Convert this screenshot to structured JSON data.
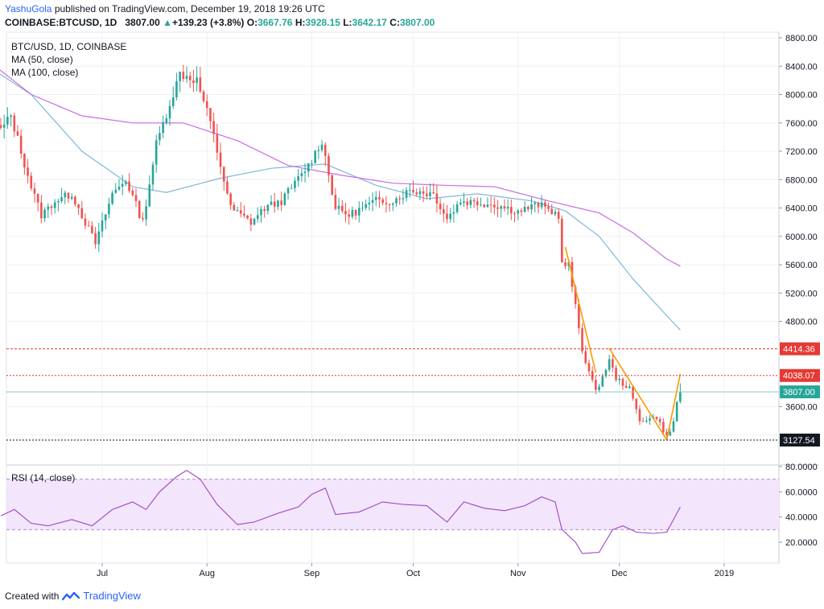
{
  "header": {
    "author": "YashuGola",
    "published_text": " published on TradingView.com, December 19, 2018 19:26 UTC",
    "symbol": "COINBASE:BTCUSD, 1D",
    "price": "3807.00",
    "change_arrow": "▲",
    "change": "+139.23 (+3.8%)",
    "open_label": "O:",
    "open": "3667.76",
    "high_label": "H:",
    "high": "3928.15",
    "low_label": "L:",
    "low": "3642.17",
    "close_label": "C:",
    "close": "3807.00"
  },
  "footer": {
    "created_with": "Created with",
    "brand": "TradingView"
  },
  "colors": {
    "up": "#26a69a",
    "down": "#ef5350",
    "ma50": "#7fb8d8",
    "ma100": "#c86ce4",
    "trend": "#ff9800",
    "rsi": "#9c44c8",
    "rsi_band": "#f3e5fb",
    "level_red": "#e53935",
    "grid": "#eef0f4"
  },
  "chart_data": {
    "type": "candlestick",
    "title": "BTC/USD, 1D, COINBASE",
    "legend": [
      "MA (50, close)",
      "MA (100, close)"
    ],
    "x_ticks": [
      "Jul",
      "Aug",
      "Sep",
      "Oct",
      "Nov",
      "Dec",
      "2019"
    ],
    "y_ticks": [
      "8800.00",
      "8400.00",
      "8000.00",
      "7600.00",
      "7200.00",
      "6800.00",
      "6400.00",
      "6000.00",
      "5600.00",
      "5200.00",
      "4800.00",
      "3600.00"
    ],
    "ylim": [
      3050,
      8800
    ],
    "last_price": 3807.0,
    "price_labels": {
      "high_line": "4414.36",
      "mid_line": "4038.07",
      "last": "3807.00",
      "low_line": "3127.54"
    },
    "hlines": [
      4414.36,
      4038.07,
      3127.54
    ],
    "pivots": [
      [
        "2018-06-01",
        7500
      ],
      [
        "2018-06-04",
        7700
      ],
      [
        "2018-06-10",
        6700
      ],
      [
        "2018-06-13",
        6300
      ],
      [
        "2018-06-17",
        6500
      ],
      [
        "2018-06-22",
        6600
      ],
      [
        "2018-06-29",
        5900
      ],
      [
        "2018-07-04",
        6600
      ],
      [
        "2018-07-08",
        6800
      ],
      [
        "2018-07-13",
        6200
      ],
      [
        "2018-07-17",
        7300
      ],
      [
        "2018-07-24",
        8300
      ],
      [
        "2018-07-29",
        8200
      ],
      [
        "2018-08-02",
        7600
      ],
      [
        "2018-08-08",
        6400
      ],
      [
        "2018-08-14",
        6200
      ],
      [
        "2018-08-18",
        6400
      ],
      [
        "2018-08-23",
        6500
      ],
      [
        "2018-08-31",
        7000
      ],
      [
        "2018-09-04",
        7350
      ],
      [
        "2018-09-08",
        6400
      ],
      [
        "2018-09-12",
        6300
      ],
      [
        "2018-09-20",
        6500
      ],
      [
        "2018-09-25",
        6500
      ],
      [
        "2018-09-30",
        6650
      ],
      [
        "2018-10-07",
        6600
      ],
      [
        "2018-10-11",
        6250
      ],
      [
        "2018-10-15",
        6500
      ],
      [
        "2018-10-25",
        6450
      ],
      [
        "2018-11-01",
        6350
      ],
      [
        "2018-11-07",
        6450
      ],
      [
        "2018-11-13",
        6300
      ],
      [
        "2018-11-14",
        5600
      ],
      [
        "2018-11-16",
        5600
      ],
      [
        "2018-11-20",
        4400
      ],
      [
        "2018-11-24",
        3800
      ],
      [
        "2018-11-28",
        4250
      ],
      [
        "2018-11-30",
        4000
      ],
      [
        "2018-12-04",
        3850
      ],
      [
        "2018-12-07",
        3400
      ],
      [
        "2018-12-12",
        3450
      ],
      [
        "2018-12-15",
        3180
      ],
      [
        "2018-12-16",
        3230
      ],
      [
        "2018-12-17",
        3400
      ],
      [
        "2018-12-18",
        3660
      ],
      [
        "2018-12-19",
        3807
      ]
    ],
    "ma50": [
      [
        "2018-05-25",
        8500
      ],
      [
        "2018-06-10",
        8000
      ],
      [
        "2018-06-25",
        7200
      ],
      [
        "2018-07-10",
        6700
      ],
      [
        "2018-07-20",
        6620
      ],
      [
        "2018-08-05",
        6820
      ],
      [
        "2018-08-20",
        6960
      ],
      [
        "2018-09-05",
        7020
      ],
      [
        "2018-09-20",
        6720
      ],
      [
        "2018-10-05",
        6530
      ],
      [
        "2018-10-20",
        6600
      ],
      [
        "2018-11-05",
        6500
      ],
      [
        "2018-11-15",
        6360
      ],
      [
        "2018-11-25",
        6000
      ],
      [
        "2018-12-05",
        5400
      ],
      [
        "2018-12-15",
        4880
      ],
      [
        "2018-12-19",
        4680
      ]
    ],
    "ma100": [
      [
        "2018-05-25",
        8600
      ],
      [
        "2018-06-10",
        8000
      ],
      [
        "2018-06-25",
        7700
      ],
      [
        "2018-07-10",
        7600
      ],
      [
        "2018-07-25",
        7600
      ],
      [
        "2018-08-10",
        7350
      ],
      [
        "2018-08-25",
        7000
      ],
      [
        "2018-09-10",
        6860
      ],
      [
        "2018-09-25",
        6750
      ],
      [
        "2018-10-10",
        6720
      ],
      [
        "2018-10-25",
        6700
      ],
      [
        "2018-11-10",
        6500
      ],
      [
        "2018-11-25",
        6330
      ],
      [
        "2018-12-05",
        6050
      ],
      [
        "2018-12-15",
        5680
      ],
      [
        "2018-12-19",
        5580
      ]
    ],
    "trendlines": [
      [
        [
          "2018-11-15",
          5850
        ],
        [
          "2018-11-24",
          4080
        ]
      ],
      [
        [
          "2018-11-28",
          4420
        ],
        [
          "2018-12-15",
          3130
        ]
      ],
      [
        [
          "2018-12-15",
          3130
        ],
        [
          "2018-12-19",
          4060
        ]
      ]
    ],
    "rsi": {
      "title": "RSI (14, close)",
      "y_ticks": [
        "80.0000",
        "60.0000",
        "40.0000",
        "20.0000"
      ],
      "band": [
        30,
        70
      ],
      "ylim": [
        5,
        85
      ],
      "points": [
        [
          "2018-06-01",
          41
        ],
        [
          "2018-06-05",
          46
        ],
        [
          "2018-06-10",
          35
        ],
        [
          "2018-06-15",
          33
        ],
        [
          "2018-06-22",
          38
        ],
        [
          "2018-06-28",
          33
        ],
        [
          "2018-07-04",
          46
        ],
        [
          "2018-07-10",
          52
        ],
        [
          "2018-07-14",
          46
        ],
        [
          "2018-07-18",
          60
        ],
        [
          "2018-07-23",
          72
        ],
        [
          "2018-07-26",
          77
        ],
        [
          "2018-07-30",
          70
        ],
        [
          "2018-08-04",
          50
        ],
        [
          "2018-08-10",
          34
        ],
        [
          "2018-08-15",
          36
        ],
        [
          "2018-08-22",
          43
        ],
        [
          "2018-08-28",
          48
        ],
        [
          "2018-09-01",
          58
        ],
        [
          "2018-09-05",
          63
        ],
        [
          "2018-09-08",
          42
        ],
        [
          "2018-09-15",
          44
        ],
        [
          "2018-09-22",
          52
        ],
        [
          "2018-09-28",
          50
        ],
        [
          "2018-10-05",
          49
        ],
        [
          "2018-10-11",
          36
        ],
        [
          "2018-10-16",
          52
        ],
        [
          "2018-10-22",
          47
        ],
        [
          "2018-10-28",
          45
        ],
        [
          "2018-11-03",
          49
        ],
        [
          "2018-11-08",
          56
        ],
        [
          "2018-11-12",
          52
        ],
        [
          "2018-11-14",
          30
        ],
        [
          "2018-11-18",
          20
        ],
        [
          "2018-11-20",
          11
        ],
        [
          "2018-11-25",
          12
        ],
        [
          "2018-11-29",
          30
        ],
        [
          "2018-12-02",
          33
        ],
        [
          "2018-12-06",
          28
        ],
        [
          "2018-12-11",
          27
        ],
        [
          "2018-12-15",
          28
        ],
        [
          "2018-12-17",
          38
        ],
        [
          "2018-12-19",
          48
        ]
      ]
    }
  }
}
